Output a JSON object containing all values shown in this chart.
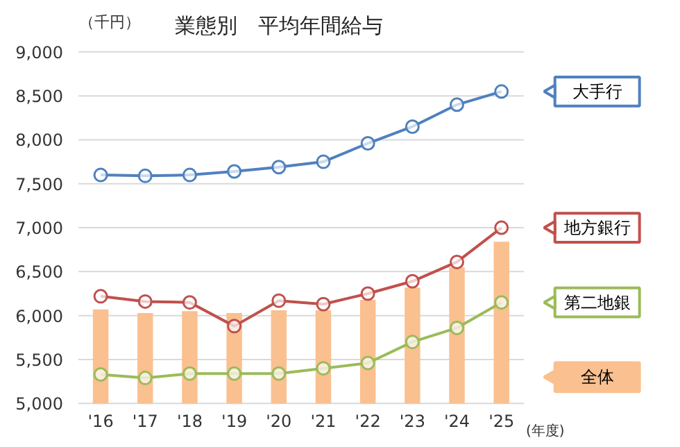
{
  "chart_data": {
    "type": "line",
    "title": "業態別　平均年間給与",
    "ylabel": "（千円）",
    "xlabel": "(年度)",
    "categories": [
      "'16",
      "'17",
      "'18",
      "'19",
      "'20",
      "'21",
      "'22",
      "'23",
      "'24",
      "'25"
    ],
    "series": [
      {
        "name": "全体",
        "type": "bar",
        "color": "#fac090",
        "values": [
          6070,
          6030,
          6050,
          6030,
          6060,
          6060,
          6180,
          6320,
          6550,
          6840
        ]
      },
      {
        "name": "大手行",
        "color": "#4f81bd",
        "values": [
          7600,
          7590,
          7600,
          7640,
          7690,
          7750,
          7960,
          8150,
          8400,
          8550
        ]
      },
      {
        "name": "地方銀行",
        "color": "#c0504d",
        "values": [
          6220,
          6160,
          6150,
          5880,
          6170,
          6130,
          6250,
          6390,
          6610,
          7000
        ]
      },
      {
        "name": "第二地銀",
        "color": "#9bbb59",
        "values": [
          5330,
          5290,
          5340,
          5340,
          5340,
          5400,
          5460,
          5700,
          5860,
          6150
        ]
      }
    ],
    "ylim": [
      5000,
      9000
    ],
    "yticks": [
      {
        "value": 5000,
        "label": "5,000"
      },
      {
        "value": 5500,
        "label": "5,500"
      },
      {
        "value": 6000,
        "label": "6,000"
      },
      {
        "value": 6500,
        "label": "6,500"
      },
      {
        "value": 7000,
        "label": "7,000"
      },
      {
        "value": 7500,
        "label": "7,500"
      },
      {
        "value": 8000,
        "label": "8,000"
      },
      {
        "value": 8500,
        "label": "8,500"
      },
      {
        "value": 9000,
        "label": "9,000"
      }
    ],
    "grid": "y",
    "legend": "right",
    "marker": "circle",
    "line_style": "solid"
  }
}
